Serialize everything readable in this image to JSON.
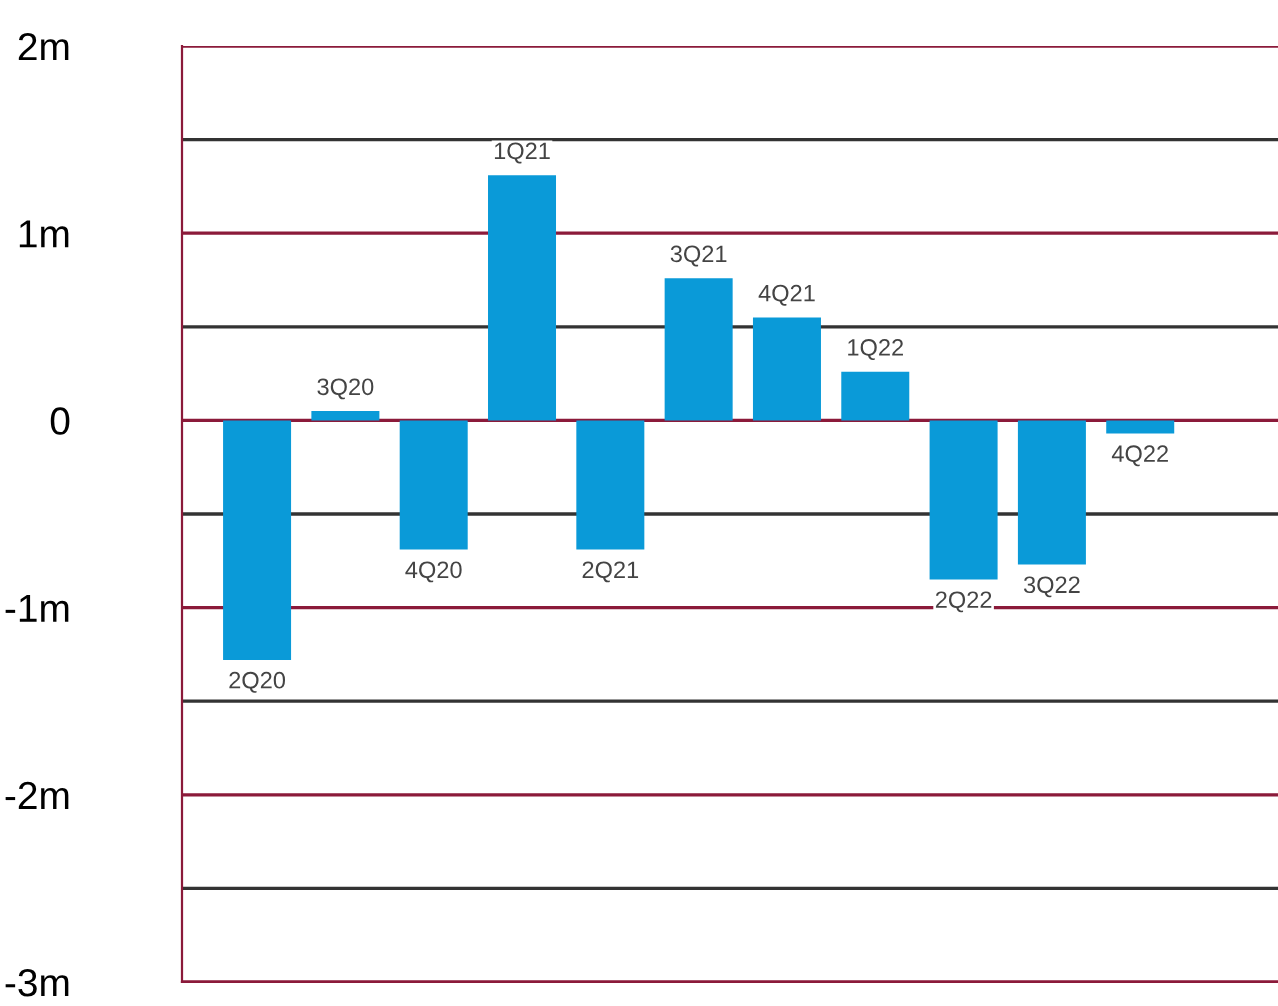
{
  "chart_data": {
    "type": "bar",
    "categories": [
      "2Q20",
      "3Q20",
      "4Q20",
      "1Q21",
      "2Q21",
      "3Q21",
      "4Q21",
      "1Q22",
      "2Q22",
      "3Q22",
      "4Q22"
    ],
    "values": [
      -1.28,
      0.05,
      -0.69,
      1.31,
      -0.69,
      0.76,
      0.55,
      0.26,
      -0.85,
      -0.77,
      -0.07
    ],
    "color": "#0a9ad8",
    "ylim": [
      -3,
      2
    ],
    "yticks": [
      {
        "value": -3,
        "label": "-3m"
      },
      {
        "value": -2.5,
        "label": null
      },
      {
        "value": -2,
        "label": "-2m"
      },
      {
        "value": -1.5,
        "label": null
      },
      {
        "value": -1,
        "label": "-1m"
      },
      {
        "value": -0.5,
        "label": null
      },
      0,
      {
        "value": 0.5,
        "label": null
      },
      {
        "value": 1,
        "label": "1m"
      },
      {
        "value": 1.5,
        "label": null
      },
      {
        "value": 2,
        "label": "2m"
      }
    ],
    "grid": "y",
    "tick_labels": "y"
  }
}
